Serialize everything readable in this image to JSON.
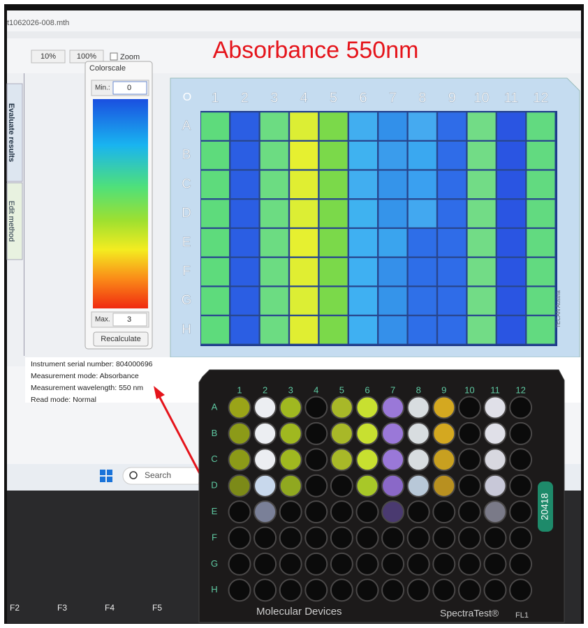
{
  "window": {
    "filename": "t1062026-008.mth",
    "zoom_buttons": [
      "10%",
      "100%"
    ],
    "zoom_label": "Zoom"
  },
  "title": "Absorbance 550nm",
  "tabs": [
    "Evaluate results",
    "Edit method"
  ],
  "colorscale": {
    "title": "Colorscale",
    "min_label": "Min.:",
    "min_value": "0",
    "max_label": "Max.",
    "max_value": "3",
    "button": "Recalculate"
  },
  "screen_plate": {
    "corner": "O",
    "columns": [
      "1",
      "2",
      "3",
      "4",
      "5",
      "6",
      "7",
      "8",
      "9",
      "10",
      "11",
      "12"
    ],
    "rows": [
      "A",
      "B",
      "C",
      "D",
      "E",
      "F",
      "G",
      "H"
    ],
    "brand": "TECAN Austria",
    "well_colors": [
      [
        "#5edb7c",
        "#2b5ee3",
        "#6cdc82",
        "#dcee34",
        "#7bd94a",
        "#41aef0",
        "#3290ea",
        "#45aaf0",
        "#2f6ce8",
        "#72dc86",
        "#2a55e2",
        "#62da80"
      ],
      [
        "#5edb7c",
        "#2b5ee3",
        "#6cdc82",
        "#e6f030",
        "#7bd94a",
        "#3fb2f0",
        "#3a9cec",
        "#3aa8f0",
        "#2f6ce8",
        "#72dc86",
        "#2a55e2",
        "#62da80"
      ],
      [
        "#5edb7c",
        "#2b5ee3",
        "#6cdc82",
        "#e0ee32",
        "#7bd94a",
        "#41aef0",
        "#3594ea",
        "#3aa0f0",
        "#2f6ce8",
        "#72dc86",
        "#2a55e2",
        "#62da80"
      ],
      [
        "#5edb7c",
        "#2b5ee3",
        "#6cdc82",
        "#dcee34",
        "#7bd94a",
        "#3fb2f0",
        "#3594ea",
        "#42a8f0",
        "#2f6ce8",
        "#72dc86",
        "#2a55e2",
        "#62da80"
      ],
      [
        "#5edb7c",
        "#2b5ee3",
        "#6cdc82",
        "#e6f030",
        "#7bd94a",
        "#3fb0f2",
        "#3aa4ee",
        "#2e6ee8",
        "#2f6ce8",
        "#72dc86",
        "#2a55e2",
        "#62da80"
      ],
      [
        "#5edb7c",
        "#2b5ee3",
        "#6cdc82",
        "#e0ee32",
        "#7bd94a",
        "#3fb0f2",
        "#3590ea",
        "#2e6ee8",
        "#2f6ce8",
        "#72dc86",
        "#2a55e2",
        "#62da80"
      ],
      [
        "#5edb7c",
        "#2b5ee3",
        "#6cdc82",
        "#dcee34",
        "#7bd94a",
        "#3fb0f2",
        "#3594ea",
        "#2f70e8",
        "#2f6ce8",
        "#72dc86",
        "#2a55e2",
        "#62da80"
      ],
      [
        "#5edb7c",
        "#2b5ee3",
        "#6cdc82",
        "#e0ee32",
        "#7bd94a",
        "#3fb0f2",
        "#3590ea",
        "#2e6ee8",
        "#2f6ce8",
        "#72dc86",
        "#2a55e2",
        "#62da80"
      ]
    ]
  },
  "info_lines": [
    "Instrument serial number: 804000696",
    "Measurement mode: Absorbance",
    "Measurement wavelength: 550 nm",
    "Read mode: Normal"
  ],
  "taskbar": {
    "search": "Search"
  },
  "physical_plate": {
    "columns": [
      "1",
      "2",
      "3",
      "4",
      "5",
      "6",
      "7",
      "8",
      "9",
      "10",
      "11",
      "12"
    ],
    "rows": [
      "A",
      "B",
      "C",
      "D",
      "E",
      "F",
      "G",
      "H"
    ],
    "id": "20418",
    "maker": "Molecular Devices",
    "model": "SpectraTest®",
    "model_suffix": "FL1",
    "well_colors": [
      [
        "#9aa418",
        "#eceef2",
        "#a0b820",
        null,
        "#a8b828",
        "#c8e030",
        "#9a78d8",
        "#d8dde0",
        "#d4a820",
        null,
        "#e0e0e8",
        null
      ],
      [
        "#8c9a18",
        "#eceef2",
        "#a0b820",
        null,
        "#a8b828",
        "#c8e030",
        "#9a78d8",
        "#d8dde0",
        "#d4a820",
        null,
        "#e0e0e8",
        null
      ],
      [
        "#8c9a18",
        "#eceef2",
        "#a0b820",
        null,
        "#a8b828",
        "#c8e030",
        "#9a78d8",
        "#d8dde0",
        "#c8a020",
        null,
        "#d8d8e0",
        null
      ],
      [
        "#7c8a18",
        "#c8d8ec",
        "#90a820",
        null,
        null,
        "#a8c828",
        "#8a68c8",
        "#b8c8d8",
        "#b89020",
        null,
        "#c8c8d8",
        null
      ],
      [
        null,
        "#7a8098",
        null,
        null,
        null,
        null,
        "#4a3a70",
        null,
        null,
        null,
        "#7a7a88",
        null
      ],
      [
        null,
        null,
        null,
        null,
        null,
        null,
        null,
        null,
        null,
        null,
        null,
        null
      ],
      [
        null,
        null,
        null,
        null,
        null,
        null,
        null,
        null,
        null,
        null,
        null,
        null
      ],
      [
        null,
        null,
        null,
        null,
        null,
        null,
        null,
        null,
        null,
        null,
        null,
        null
      ]
    ]
  },
  "keyboard": [
    "F2",
    "F3",
    "F4",
    "F5"
  ]
}
